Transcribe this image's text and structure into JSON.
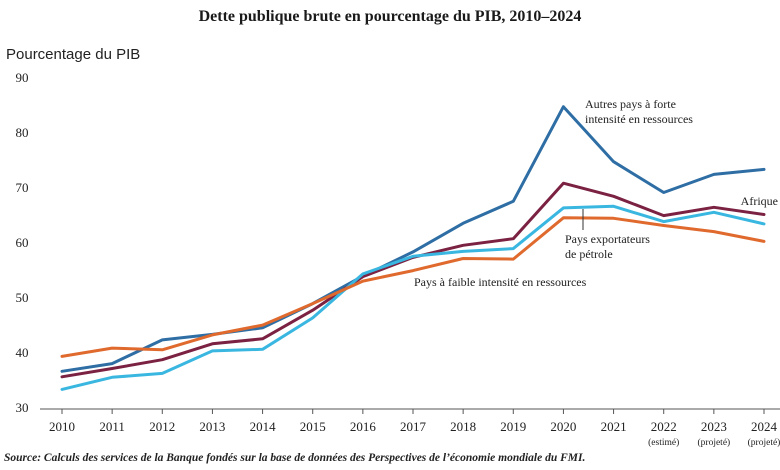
{
  "chart_data": {
    "type": "line",
    "title": "Dette publique brute en pourcentage du PIB, 2010–2024",
    "ylabel": "Pourcentage du PIB",
    "xlabel": "",
    "ylim": [
      30,
      90
    ],
    "yticks": [
      30,
      40,
      50,
      60,
      70,
      80,
      90
    ],
    "grid": false,
    "x": [
      "2010",
      "2011",
      "2012",
      "2013",
      "2014",
      "2015",
      "2016",
      "2017",
      "2018",
      "2019",
      "2020",
      "2021",
      "2022",
      "2023",
      "2024"
    ],
    "x_sublabels": [
      "",
      "",
      "",
      "",
      "",
      "",
      "",
      "",
      "",
      "",
      "",
      "",
      "(estimé)",
      "(projeté)",
      "(projeté)"
    ],
    "series": [
      {
        "name": "Autres pays à forte intensité en ressources",
        "color": "#2e6ea4",
        "values": [
          36.5,
          37.9,
          42.2,
          43.2,
          44.4,
          48.8,
          53.8,
          58.2,
          63.4,
          67.4,
          84.6,
          74.6,
          69.0,
          72.3,
          73.2
        ]
      },
      {
        "name": "Afrique subsaharienne",
        "color": "#7b2142",
        "values": [
          35.5,
          37.0,
          38.6,
          41.5,
          42.4,
          47.6,
          53.7,
          57.2,
          59.4,
          60.6,
          70.7,
          68.3,
          64.8,
          66.3,
          65.0
        ]
      },
      {
        "name": "Pays exportateurs de pétrole",
        "color": "#3ab7e0",
        "values": [
          33.2,
          35.4,
          36.1,
          40.2,
          40.5,
          46.2,
          54.2,
          57.4,
          58.3,
          58.8,
          66.2,
          66.5,
          63.7,
          65.4,
          63.3
        ]
      },
      {
        "name": "Pays à faible intensité en ressources",
        "color": "#e06a2e",
        "values": [
          39.2,
          40.7,
          40.4,
          43.1,
          44.9,
          48.8,
          52.9,
          54.8,
          57.0,
          56.9,
          64.4,
          64.3,
          63.0,
          61.9,
          60.1
        ]
      }
    ],
    "annotations": [
      {
        "lines": [
          "Autres pays à forte",
          "intensité en ressources"
        ]
      },
      {
        "lines": [
          "Afrique"
        ]
      },
      {
        "lines": [
          "Pays exportateurs",
          "de pétrole"
        ]
      },
      {
        "lines": [
          "Pays à faible intensité en ressources"
        ]
      }
    ],
    "source": "Source: Calculs des services de la Banque fondés sur la base de données des Perspectives de l’économie mondiale du FMI."
  }
}
